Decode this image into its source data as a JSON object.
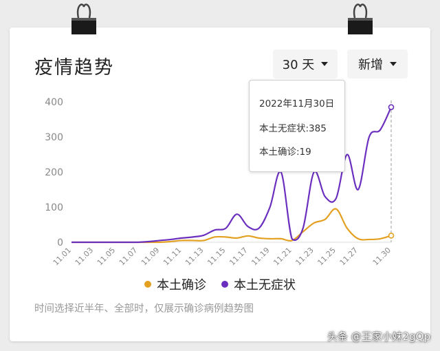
{
  "header": {
    "title": "疫情趋势",
    "range_dropdown": "30 天",
    "type_dropdown": "新增"
  },
  "tooltip": {
    "date": "2022年11月30日",
    "line1": "本土无症状:385",
    "line2": "本土确诊:19"
  },
  "note": "时间选择近半年、全部时，仅展示确诊病例趋势图",
  "watermark": "头条 @王家小妹2gQp",
  "colors": {
    "confirmed": "#e3a021",
    "asymptomatic": "#6b2fbf",
    "axis_text": "#888888",
    "grid": "#eeeeee"
  },
  "chart_data": {
    "type": "line",
    "x_labels": [
      "11.01",
      "11.03",
      "11.05",
      "11.07",
      "11.09",
      "11.11",
      "11.13",
      "11.15",
      "11.17",
      "11.19",
      "11.21",
      "11.23",
      "11.25",
      "11.27",
      "11.30"
    ],
    "x": [
      "11.01",
      "11.02",
      "11.03",
      "11.04",
      "11.05",
      "11.06",
      "11.07",
      "11.08",
      "11.09",
      "11.10",
      "11.11",
      "11.12",
      "11.13",
      "11.14",
      "11.15",
      "11.16",
      "11.17",
      "11.18",
      "11.19",
      "11.20",
      "11.21",
      "11.22",
      "11.23",
      "11.24",
      "11.25",
      "11.26",
      "11.27",
      "11.28",
      "11.29",
      "11.30"
    ],
    "ylim": [
      0,
      400
    ],
    "y_ticks": [
      0,
      100,
      200,
      300,
      400
    ],
    "grid": false,
    "legend_position": "bottom",
    "series": [
      {
        "name": "本土确诊",
        "color": "#e3a021",
        "values": [
          0,
          0,
          0,
          0,
          0,
          0,
          0,
          0,
          0,
          2,
          5,
          5,
          5,
          15,
          15,
          12,
          18,
          12,
          10,
          10,
          5,
          30,
          55,
          65,
          95,
          40,
          10,
          8,
          10,
          19
        ]
      },
      {
        "name": "本土无症状",
        "color": "#6b2fbf",
        "values": [
          0,
          0,
          0,
          0,
          0,
          0,
          0,
          2,
          5,
          8,
          12,
          15,
          20,
          35,
          40,
          80,
          45,
          40,
          100,
          200,
          10,
          40,
          200,
          130,
          125,
          250,
          150,
          300,
          320,
          385
        ]
      }
    ]
  }
}
